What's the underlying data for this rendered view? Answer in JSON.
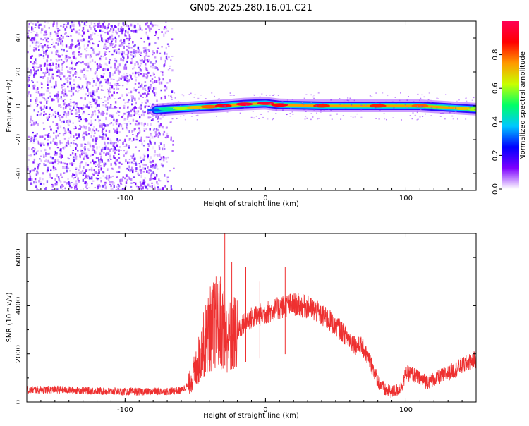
{
  "title": "GN05.2025.280.16.01.C21",
  "chart_data": [
    {
      "type": "heatmap",
      "xlabel": "Height of straight line (km)",
      "ylabel": "Frequency (Hz)",
      "xlim": [
        -170,
        150
      ],
      "ylim": [
        -50,
        50
      ],
      "x_ticks": [
        -100,
        0,
        100
      ],
      "y_ticks": [
        -40,
        -20,
        0,
        20,
        40
      ],
      "noise_region_x": [
        -170,
        -64
      ],
      "signal_band": [
        {
          "x": -78,
          "f": -2.5,
          "amp": 0.3
        },
        {
          "x": -70,
          "f": -2,
          "amp": 0.45
        },
        {
          "x": -60,
          "f": -1.5,
          "amp": 0.6
        },
        {
          "x": -50,
          "f": -1,
          "amp": 0.7
        },
        {
          "x": -40,
          "f": -0.5,
          "amp": 0.8
        },
        {
          "x": -30,
          "f": 0,
          "amp": 0.9
        },
        {
          "x": -15,
          "f": 1,
          "amp": 0.95
        },
        {
          "x": 0,
          "f": 1.5,
          "amp": 0.95
        },
        {
          "x": 10,
          "f": 0.5,
          "amp": 0.9
        },
        {
          "x": 40,
          "f": 0,
          "amp": 0.85
        },
        {
          "x": 80,
          "f": 0,
          "amp": 0.85
        },
        {
          "x": 110,
          "f": 0,
          "amp": 0.8
        },
        {
          "x": 140,
          "f": -1.5,
          "amp": 0.7
        },
        {
          "x": 150,
          "f": -2,
          "amp": 0.6
        }
      ],
      "colorbar": {
        "label": "Normalized spectral amplitude",
        "range": [
          0,
          1
        ],
        "ticks": [
          "0.0",
          "0.2",
          "0.4",
          "0.6",
          "0.8"
        ],
        "colors": [
          "#ffffff",
          "#7d00ff",
          "#0000ff",
          "#00c8ff",
          "#00ff66",
          "#c8ff00",
          "#ff9900",
          "#ff0000",
          "#ff0055"
        ]
      }
    },
    {
      "type": "line",
      "xlabel": "Height of straight line (km)",
      "ylabel": "SNR (10 * v/v)",
      "xlim": [
        -170,
        150
      ],
      "ylim": [
        0,
        7000
      ],
      "x_ticks": [
        -100,
        0,
        100
      ],
      "y_ticks": [
        0,
        2000,
        4000,
        6000
      ],
      "color": "#ee3030",
      "series": [
        {
          "x": [
            -170,
            -150,
            -130,
            -110,
            -90,
            -80,
            -70,
            -60,
            -55,
            -50,
            -45,
            -40,
            -35,
            -30,
            -25,
            -20,
            -15,
            -10,
            -5,
            0,
            5,
            10,
            15,
            20,
            25,
            30,
            35,
            40,
            50,
            55,
            60,
            65,
            68,
            70,
            75,
            80,
            85,
            90,
            95,
            98,
            100,
            105,
            110,
            115,
            120,
            130,
            140,
            150
          ],
          "y": [
            500,
            520,
            480,
            440,
            430,
            440,
            450,
            480,
            700,
            1300,
            2200,
            3000,
            3300,
            3100,
            2700,
            2900,
            3300,
            3500,
            3600,
            3700,
            3800,
            3900,
            4000,
            4050,
            4000,
            3950,
            3800,
            3600,
            3200,
            2900,
            2600,
            2300,
            2350,
            2200,
            1600,
            900,
            500,
            400,
            550,
            800,
            1200,
            1150,
            950,
            850,
            950,
            1200,
            1500,
            1800
          ]
        }
      ],
      "spikes": [
        {
          "x": -40,
          "y": 3700
        },
        {
          "x": -37,
          "y": 4800
        },
        {
          "x": -32,
          "y": 5200
        },
        {
          "x": -29,
          "y": 7000
        },
        {
          "x": -24,
          "y": 5800
        },
        {
          "x": -14,
          "y": 5600
        },
        {
          "x": -4,
          "y": 5000
        },
        {
          "x": 14,
          "y": 5600
        },
        {
          "x": 98,
          "y": 2200
        }
      ]
    }
  ]
}
